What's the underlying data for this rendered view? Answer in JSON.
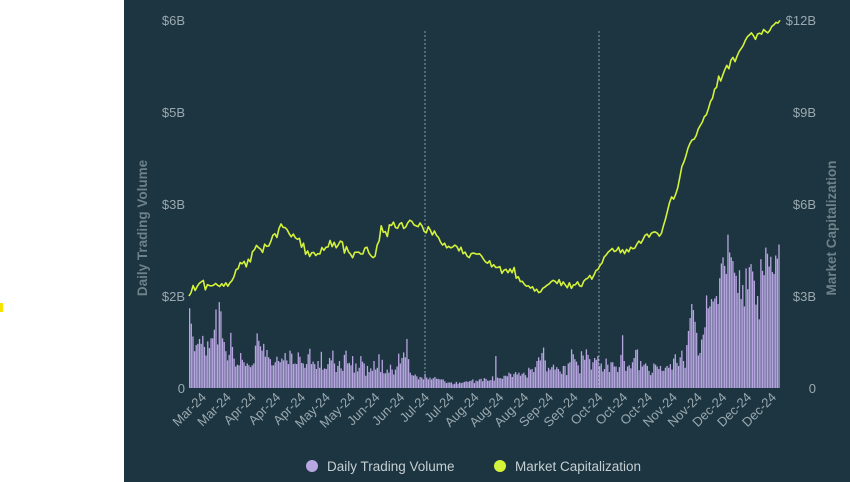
{
  "chart_data": {
    "type": "bar+line",
    "title": "",
    "left_axis": {
      "label": "Daily Trading Volume",
      "ticks": [
        "0",
        "$2B",
        "$3B",
        "$5B",
        "$6B"
      ],
      "tick_values": [
        0,
        1.5,
        3,
        4.5,
        6
      ],
      "range": [
        0,
        6
      ]
    },
    "right_axis": {
      "label": "Market Capitalization",
      "ticks": [
        "0",
        "$3B",
        "$6B",
        "$9B",
        "$12B"
      ],
      "tick_values": [
        0,
        3,
        6,
        9,
        12
      ],
      "range": [
        0,
        12
      ]
    },
    "x_tick_labels": [
      "Mar-24",
      "Mar-24",
      "Apr-24",
      "Apr-24",
      "Apr-24",
      "May-24",
      "May-24",
      "Jun-24",
      "Jun-24",
      "Jul-24",
      "Jul-24",
      "Aug-24",
      "Aug-24",
      "Aug-24",
      "Sep-24",
      "Sep-24",
      "Oct-24",
      "Oct-24",
      "Oct-24",
      "Nov-24",
      "Nov-24",
      "Dec-24",
      "Dec-24",
      "Dec-24"
    ],
    "legend": {
      "placement": "bottom-center"
    },
    "series": [
      {
        "name": "Daily Trading Volume",
        "type": "bar",
        "axis": "left",
        "color": "#b8a6e2",
        "values": [
          1.3,
          1.05,
          0.84,
          0.6,
          0.7,
          0.72,
          0.8,
          0.72,
          0.85,
          0.67,
          0.53,
          0.76,
          0.65,
          0.81,
          0.81,
          0.95,
          1.28,
          0.71,
          1.4,
          1.25,
          0.81,
          0.75,
          0.6,
          0.45,
          0.54,
          0.9,
          0.67,
          0.48,
          0.35,
          0.38,
          0.37,
          0.57,
          0.46,
          0.42,
          0.36,
          0.4,
          0.37,
          0.34,
          0.37,
          0.4,
          0.69,
          0.89,
          0.77,
          0.68,
          0.61,
          0.72,
          0.51,
          0.62,
          0.5,
          0.47,
          0.37,
          0.37,
          0.42,
          0.51,
          0.44,
          0.42,
          0.48,
          0.45,
          0.57,
          0.45,
          0.39,
          0.61,
          0.56,
          0.39,
          0.4,
          0.39,
          0.58,
          0.51,
          0.41,
          0.4,
          0.33,
          0.39,
          0.55,
          0.64,
          0.39,
          0.43,
          0.39,
          0.31,
          0.44,
          0.33,
          0.59,
          0.3,
          0.32,
          0.31,
          0.39,
          0.49,
          0.45,
          0.61,
          0.4,
          0.26,
          0.36,
          0.44,
          0.32,
          0.28,
          0.54,
          0.61,
          0.4,
          0.41,
          0.37,
          0.52,
          0.25,
          0.4,
          0.27,
          0.33,
          0.52,
          0.43,
          0.4,
          0.2,
          0.36,
          0.26,
          0.32,
          0.28,
          0.44,
          0.3,
          0.33,
          0.55,
          0.26,
          0.46,
          0.24,
          0.24,
          0.3,
          0.25,
          0.38,
          0.3,
          0.22,
          0.3,
          0.35,
          0.56,
          0.4,
          0.49,
          0.58,
          0.5,
          0.8,
          0.47,
          0.25,
          0.21,
          0.2,
          0.22,
          0.19,
          0.14,
          0.18,
          0.17,
          0.14,
          0.23,
          0.17,
          0.14,
          0.17,
          0.14,
          0.16,
          0.18,
          0.15,
          0.15,
          0.14,
          0.14,
          0.14,
          0.11,
          0.08,
          0.09,
          0.09,
          0.09,
          0.06,
          0.07,
          0.1,
          0.07,
          0.09,
          0.08,
          0.09,
          0.1,
          0.11,
          0.1,
          0.11,
          0.12,
          0.14,
          0.08,
          0.12,
          0.11,
          0.14,
          0.15,
          0.11,
          0.16,
          0.15,
          0.12,
          0.12,
          0.13,
          0.19,
          0.12,
          0.52,
          0.17,
          0.16,
          0.16,
          0.15,
          0.2,
          0.2,
          0.19,
          0.25,
          0.23,
          0.18,
          0.23,
          0.26,
          0.22,
          0.25,
          0.2,
          0.23,
          0.25,
          0.21,
          0.17,
          0.33,
          0.3,
          0.31,
          0.26,
          0.34,
          0.44,
          0.5,
          0.45,
          0.57,
          0.66,
          0.45,
          0.27,
          0.33,
          0.3,
          0.34,
          0.38,
          0.3,
          0.34,
          0.31,
          0.27,
          0.23,
          0.36,
          0.36,
          0.21,
          0.4,
          0.42,
          0.63,
          0.55,
          0.47,
          0.43,
          0.37,
          0.24,
          0.6,
          0.53,
          0.46,
          0.63,
          0.54,
          0.47,
          0.3,
          0.42,
          0.49,
          0.46,
          0.52,
          0.36,
          0.4,
          0.27,
          0.31,
          0.48,
          0.38,
          0.26,
          0.42,
          0.42,
          0.35,
          0.35,
          0.26,
          0.34,
          0.54,
          0.86,
          0.44,
          0.28,
          0.35,
          0.37,
          0.32,
          0.42,
          0.49,
          0.62,
          0.63,
          0.29,
          0.44,
          0.35,
          0.38,
          0.4,
          0.36,
          0.28,
          0.21,
          0.25,
          0.4,
          0.38,
          0.35,
          0.31,
          0.36,
          0.28,
          0.28,
          0.33,
          0.36,
          0.33,
          0.39,
          0.3,
          0.48,
          0.55,
          0.41,
          0.36,
          0.5,
          0.61,
          0.44,
          0.33,
          0.7,
          0.93,
          1.14,
          1.37,
          1.27,
          1.08,
          0.9,
          0.53,
          0.57,
          0.79,
          0.87,
          0.99,
          1.51,
          1.3,
          1.33,
          1.45,
          1.41,
          1.46,
          1.5,
          1.37,
          1.79,
          2.03,
          2.13,
          1.99,
          1.86,
          2.5,
          2.21,
          2.13,
          2.07,
          1.88,
          1.83,
          1.55,
          1.92,
          1.45,
          1.68,
          1.33,
          1.95,
          1.61,
          1.97,
          2.02,
          1.9,
          1.75,
          1.36,
          1.5,
          1.12,
          2.1,
          1.91,
          1.84,
          2.29,
          2.19,
          1.98,
          2.14,
          1.89,
          1.86,
          2.16,
          2.11,
          2.34
        ]
      },
      {
        "name": "Market Capitalization",
        "type": "line",
        "axis": "right",
        "color": "#d4f23a",
        "values": [
          3.0,
          3.11,
          3.34,
          3.18,
          3.31,
          3.41,
          3.46,
          3.51,
          3.2,
          3.37,
          3.34,
          3.33,
          3.35,
          3.41,
          3.35,
          3.31,
          3.4,
          3.32,
          3.43,
          3.32,
          3.43,
          3.5,
          3.63,
          3.86,
          3.89,
          4.09,
          4.05,
          4.13,
          3.95,
          4.2,
          4.11,
          4.44,
          4.51,
          4.65,
          4.58,
          4.53,
          4.42,
          4.69,
          4.62,
          4.63,
          4.78,
          4.98,
          5.03,
          4.91,
          5.2,
          5.35,
          5.24,
          5.23,
          5.16,
          5.03,
          4.93,
          5.02,
          4.9,
          4.85,
          4.88,
          4.59,
          4.72,
          4.36,
          4.47,
          4.29,
          4.41,
          4.42,
          4.32,
          4.38,
          4.37,
          4.58,
          4.49,
          4.59,
          4.6,
          4.81,
          4.61,
          4.75,
          4.57,
          4.67,
          4.79,
          4.76,
          4.4,
          4.61,
          4.44,
          4.36,
          4.25,
          4.42,
          4.43,
          4.43,
          4.37,
          4.37,
          4.56,
          4.59,
          4.4,
          4.31,
          4.25,
          4.3,
          4.66,
          4.8,
          5.29,
          5.08,
          5.1,
          4.94,
          5.32,
          5.3,
          5.41,
          5.23,
          5.21,
          5.35,
          5.39,
          5.2,
          5.25,
          5.39,
          5.47,
          5.43,
          5.32,
          5.29,
          5.26,
          5.38,
          5.28,
          5.11,
          5.06,
          5.26,
          5.15,
          4.99,
          5.12,
          4.98,
          4.91,
          4.76,
          4.66,
          4.72,
          4.57,
          4.62,
          4.57,
          4.6,
          4.66,
          4.61,
          4.47,
          4.59,
          4.38,
          4.43,
          4.3,
          4.25,
          4.38,
          4.4,
          4.38,
          4.36,
          4.38,
          4.31,
          4.2,
          4.11,
          4.07,
          4.15,
          3.95,
          4.02,
          3.93,
          3.93,
          3.96,
          3.74,
          3.84,
          3.87,
          3.76,
          3.88,
          3.76,
          3.93,
          3.58,
          3.63,
          3.47,
          3.48,
          3.38,
          3.32,
          3.33,
          3.26,
          3.3,
          3.16,
          3.22,
          3.11,
          3.14,
          3.25,
          3.29,
          3.35,
          3.39,
          3.46,
          3.51,
          3.48,
          3.41,
          3.53,
          3.34,
          3.46,
          3.36,
          3.27,
          3.43,
          3.25,
          3.36,
          3.37,
          3.46,
          3.33,
          3.31,
          3.48,
          3.55,
          3.58,
          3.67,
          3.55,
          3.68,
          3.83,
          3.87,
          4.0,
          4.08,
          4.27,
          4.34,
          4.43,
          4.49,
          4.55,
          4.45,
          4.48,
          4.59,
          4.41,
          4.51,
          4.38,
          4.52,
          4.44,
          4.59,
          4.54,
          4.56,
          4.69,
          4.79,
          4.72,
          4.84,
          4.98,
          5.02,
          4.92,
          5.04,
          5.08,
          5.09,
          5.05,
          4.95,
          5.04,
          5.29,
          5.51,
          5.78,
          6.05,
          6.23,
          6.16,
          6.32,
          6.53,
          6.87,
          7.22,
          7.37,
          7.57,
          7.82,
          7.98,
          8.09,
          8.11,
          8.23,
          8.44,
          8.56,
          8.67,
          8.85,
          8.91,
          9.11,
          9.34,
          9.45,
          9.74,
          9.81,
          10.17,
          10.01,
          10.2,
          10.38,
          10.52,
          10.41,
          10.69,
          10.78,
          10.64,
          10.82,
          10.97,
          11.07,
          11.17,
          11.33,
          11.45,
          11.51,
          11.58,
          11.49,
          11.37,
          11.54,
          11.57,
          11.54,
          11.69,
          11.63,
          11.58,
          11.66,
          11.79,
          11.84,
          11.92,
          11.9,
          11.99
        ]
      }
    ]
  },
  "legend": {
    "volume_label": "Daily Trading Volume",
    "cap_label": "Market Capitalization"
  },
  "colors": {
    "panel_background": "#1c3540",
    "volume_bar": "#b8a6e2",
    "market_cap_line": "#d4f23a",
    "axis_text": "#9aa9b0",
    "reference_line": "#8c9aa0"
  }
}
